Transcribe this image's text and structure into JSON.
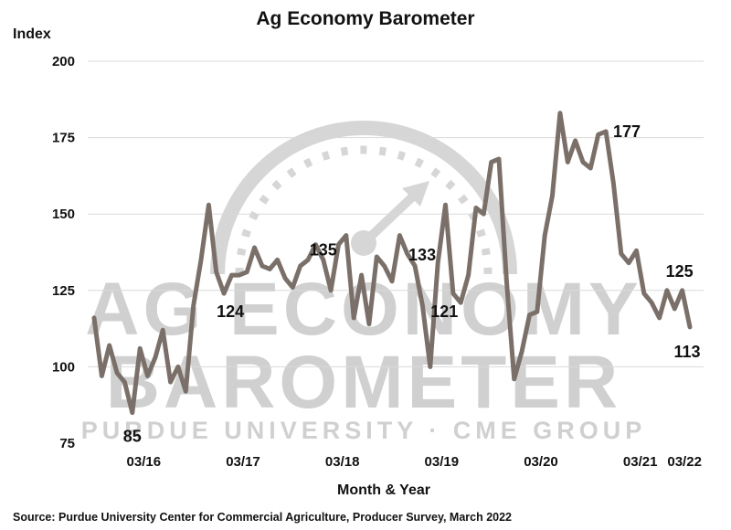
{
  "chart_data": {
    "type": "line",
    "title": "Ag Economy Barometer",
    "ylabel": "Index",
    "xlabel": "Month & Year",
    "ylim": [
      75,
      200
    ],
    "yticks": [
      75,
      100,
      125,
      150,
      175,
      200
    ],
    "grid": "horizontal",
    "legend": "none",
    "line_color": "#7a7069",
    "x_tick_labels": [
      "03/16",
      "03/17",
      "03/18",
      "03/19",
      "03/20",
      "03/21",
      "03/22"
    ],
    "series": [
      {
        "values": [
          116,
          97,
          107,
          98,
          95,
          85,
          106,
          97,
          103,
          112,
          95,
          100,
          92,
          120,
          135,
          153,
          131,
          124,
          130,
          130,
          131,
          139,
          133,
          132,
          135,
          129,
          126,
          133,
          135,
          140,
          135,
          125,
          140,
          143,
          116,
          130,
          114,
          136,
          133,
          128,
          143,
          137,
          133,
          120,
          100,
          134,
          153,
          124,
          121,
          130,
          152,
          150,
          167,
          168,
          128,
          96,
          105,
          117,
          118,
          143,
          156,
          183,
          167,
          174,
          167,
          165,
          176,
          177,
          160,
          137,
          134,
          138,
          124,
          121,
          116,
          125,
          119,
          125,
          113
        ]
      }
    ],
    "annotations": [
      {
        "text": "85",
        "x_index": 5,
        "value": 85
      },
      {
        "text": "124",
        "x_index": 17,
        "value": 124
      },
      {
        "text": "135",
        "x_index": 30,
        "value": 135
      },
      {
        "text": "133",
        "x_index": 42,
        "value": 133
      },
      {
        "text": "121",
        "x_index": 48,
        "value": 121
      },
      {
        "text": "177",
        "x_index": 67,
        "value": 177
      },
      {
        "text": "125",
        "x_index": 77,
        "value": 125
      },
      {
        "text": "113",
        "x_index": 78,
        "value": 113
      }
    ]
  },
  "watermark": {
    "line1": "AG ECONOMY",
    "line2": "BAROMETER",
    "line3": "PURDUE UNIVERSITY · CME GROUP",
    "color": "#d0d0d0",
    "icon": "gauge-arrow-icon"
  },
  "source": "Source: Purdue University Center for Commercial Agriculture, Producer Survey, March 2022"
}
